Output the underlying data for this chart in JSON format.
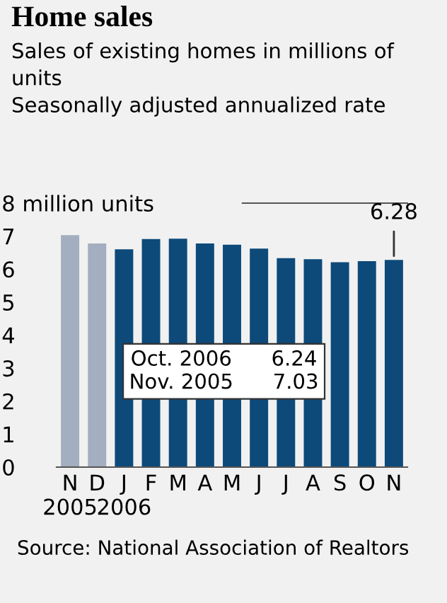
{
  "chart_data": {
    "type": "bar",
    "title": "Home sales",
    "subtitle": "Sales of existing homes in millions of\nunits\nSeasonally adjusted annualized rate",
    "categories": [
      "N\n2005",
      "D",
      "J\n2006",
      "F",
      "M",
      "A",
      "M",
      "J",
      "J",
      "A",
      "S",
      "O",
      "N"
    ],
    "values": [
      7.03,
      6.78,
      6.6,
      6.91,
      6.92,
      6.78,
      6.74,
      6.62,
      6.33,
      6.3,
      6.21,
      6.24,
      6.28
    ],
    "colors": [
      "#a3aec0",
      "#a3aec0",
      "#0d4a7a",
      "#0d4a7a",
      "#0d4a7a",
      "#0d4a7a",
      "#0d4a7a",
      "#0d4a7a",
      "#0d4a7a",
      "#0d4a7a",
      "#0d4a7a",
      "#0d4a7a",
      "#0d4a7a"
    ],
    "value_labels": [
      null,
      null,
      null,
      null,
      null,
      null,
      null,
      null,
      null,
      null,
      null,
      null,
      "6.28"
    ],
    "ylim": [
      0,
      8
    ],
    "yticks": [
      0,
      1,
      2,
      3,
      4,
      5,
      6,
      7,
      {
        "value": 8,
        "label": "8 million units"
      }
    ],
    "annotations": [
      "Oct. 2006      6.24\nNov. 2005      7.03",
      "Source: National Association of Realtors"
    ]
  }
}
